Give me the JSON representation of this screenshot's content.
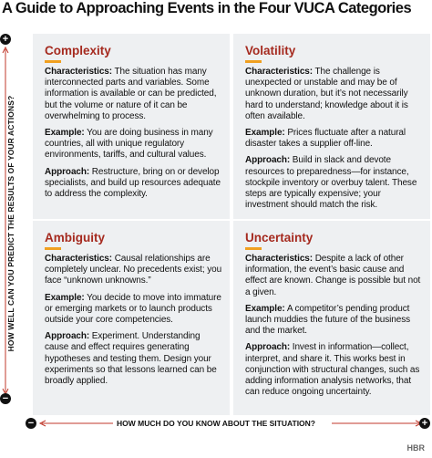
{
  "title": "A Guide to Approaching Events in the Four VUCA Categories",
  "y_axis": {
    "label": "HOW WELL CAN YOU PREDICT THE RESULTS OF YOUR ACTIONS?",
    "top": "+",
    "bottom": "−"
  },
  "x_axis": {
    "label": "HOW MUCH DO YOU KNOW ABOUT THE SITUATION?",
    "left": "−",
    "right": "+"
  },
  "quadrants": [
    {
      "title": "Complexity",
      "sections": [
        {
          "label": "Characteristics:",
          "text": "The situation has many interconnected parts and variables. Some information is available or can be predicted, but the volume or nature of it can be overwhelming to process."
        },
        {
          "label": "Example:",
          "text": "You are doing business in many countries, all with unique regulatory environments, tariffs, and cultural values."
        },
        {
          "label": "Approach:",
          "text": "Restructure, bring on or develop specialists, and build up resources adequate to address the complexity."
        }
      ]
    },
    {
      "title": "Volatility",
      "sections": [
        {
          "label": "Characteristics:",
          "text": "The challenge is unexpected or unstable and may be of unknown duration, but it’s not necessarily hard to understand; knowledge about it is often available."
        },
        {
          "label": "Example:",
          "text": "Prices fluctuate after a natural disaster takes a supplier off-line."
        },
        {
          "label": "Approach:",
          "text": "Build in slack and devote resources to preparedness—for instance, stockpile inventory or overbuy talent. These steps are typically expensive; your investment should match the risk."
        }
      ]
    },
    {
      "title": "Ambiguity",
      "sections": [
        {
          "label": "Characteristics:",
          "text": "Causal relationships are completely unclear. No precedents exist; you face “unknown unknowns.”"
        },
        {
          "label": "Example:",
          "text": "You decide to move into immature or emerging markets or to launch products outside your core competencies."
        },
        {
          "label": "Approach:",
          "text": "Experiment. Understanding cause and effect requires generating hypotheses and testing them. Design your experiments so that lessons learned can be broadly applied."
        }
      ]
    },
    {
      "title": "Uncertainty",
      "sections": [
        {
          "label": "Characteristics:",
          "text": "Despite a lack of other information, the event’s basic cause and effect are known. Change is possible but not a given."
        },
        {
          "label": "Example:",
          "text": "A competitor’s pending product launch muddies the future of the business and the market."
        },
        {
          "label": "Approach:",
          "text": "Invest in information—collect, interpret, and share it. This works best in conjunction with structural changes, such as adding information analysis networks, that can reduce ongoing uncertainty."
        }
      ]
    }
  ],
  "logo": "HBR"
}
